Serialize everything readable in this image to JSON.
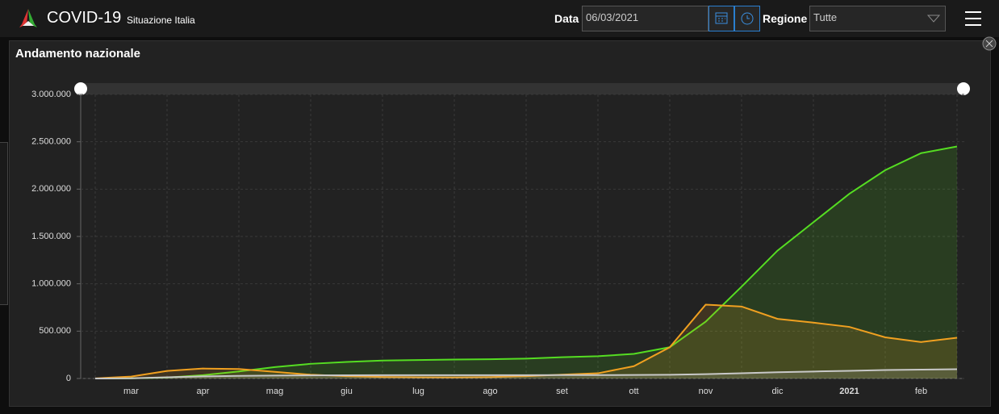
{
  "header": {
    "title": "COVID-19",
    "subtitle": "Situazione Italia",
    "date_label": "Data",
    "date_value": "06/03/2021",
    "region_label": "Regione",
    "region_value": "Tutte"
  },
  "chart_data": {
    "type": "line",
    "title": "Andamento nazionale",
    "categories": [
      null,
      "mar",
      null,
      "apr",
      null,
      "mag",
      null,
      "giu",
      null,
      "lug",
      null,
      "ago",
      null,
      "set",
      null,
      "ott",
      null,
      "nov",
      null,
      "dic",
      null,
      "2021",
      null,
      "feb",
      null
    ],
    "series": [
      {
        "color": "#55dd22",
        "values": [
          0,
          2000,
          10000,
          35000,
          75000,
          120000,
          155000,
          175000,
          190000,
          195000,
          200000,
          203000,
          210000,
          225000,
          235000,
          260000,
          330000,
          600000,
          970000,
          1350000,
          1650000,
          1950000,
          2200000,
          2380000,
          2450000
        ]
      },
      {
        "color": "#f0a020",
        "values": [
          1000,
          20000,
          80000,
          105000,
          100000,
          70000,
          40000,
          25000,
          16000,
          13000,
          12000,
          15000,
          25000,
          40000,
          55000,
          130000,
          330000,
          780000,
          760000,
          630000,
          590000,
          545000,
          435000,
          385000,
          430000
        ]
      },
      {
        "color": "#c8c8c8",
        "values": [
          0,
          2000,
          13000,
          22000,
          28000,
          31000,
          33000,
          34000,
          35000,
          35000,
          35000,
          35000,
          35500,
          36000,
          36000,
          37000,
          39000,
          46000,
          55000,
          66000,
          74000,
          81000,
          89000,
          94000,
          98000
        ]
      }
    ],
    "ylim": [
      0,
      3000000
    ],
    "yticks": [
      0,
      {
        "value": 500000,
        "label": "500.000"
      },
      {
        "value": 1000000,
        "label": "1.000.000"
      },
      {
        "value": 1500000,
        "label": "1.500.000"
      },
      {
        "value": 2000000,
        "label": "2.000.000"
      },
      {
        "value": 2500000,
        "label": "2.500.000"
      },
      {
        "value": 3000000,
        "label": "3.000.000"
      }
    ],
    "grid": true
  }
}
